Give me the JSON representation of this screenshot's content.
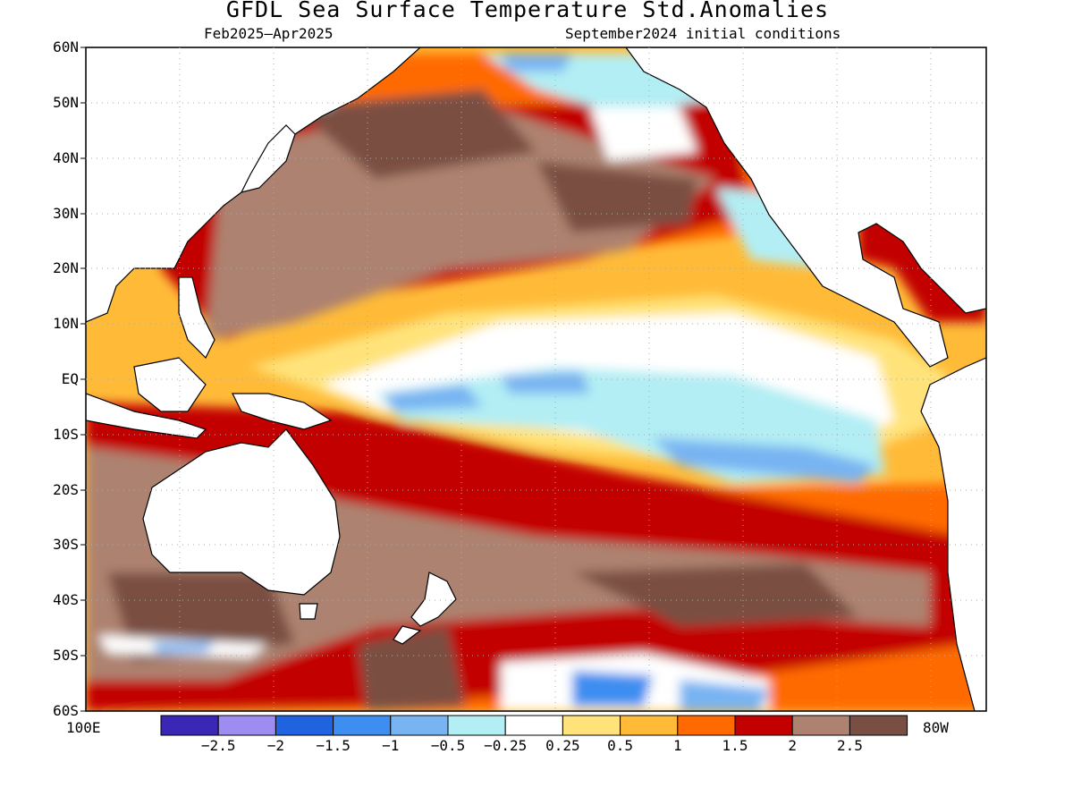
{
  "title": "GFDL Sea Surface Temperature Std.Anomalies",
  "subtitle_left": "Feb2025–Apr2025",
  "subtitle_right": "September2024 initial conditions",
  "lat_labels": [
    "60N",
    "50N",
    "40N",
    "30N",
    "20N",
    "10N",
    "EQ",
    "10S",
    "20S",
    "30S",
    "40S",
    "50S",
    "60S"
  ],
  "lon_labels": {
    "west": "100E",
    "east": "80W"
  },
  "colorbar": {
    "colors": [
      "#3b27b5",
      "#9e8cf0",
      "#1f63e0",
      "#3d8ef0",
      "#78b4f2",
      "#b2eef4",
      "#ffffff",
      "#ffe37a",
      "#ffbb38",
      "#ff6a00",
      "#c20000",
      "#ad8270",
      "#7a4f43"
    ],
    "labels": [
      "−2.5",
      "−2",
      "−1.5",
      "−1",
      "−0.5",
      "−0.25",
      "0.25",
      "0.5",
      "1",
      "1.5",
      "2",
      "2.5"
    ]
  }
}
